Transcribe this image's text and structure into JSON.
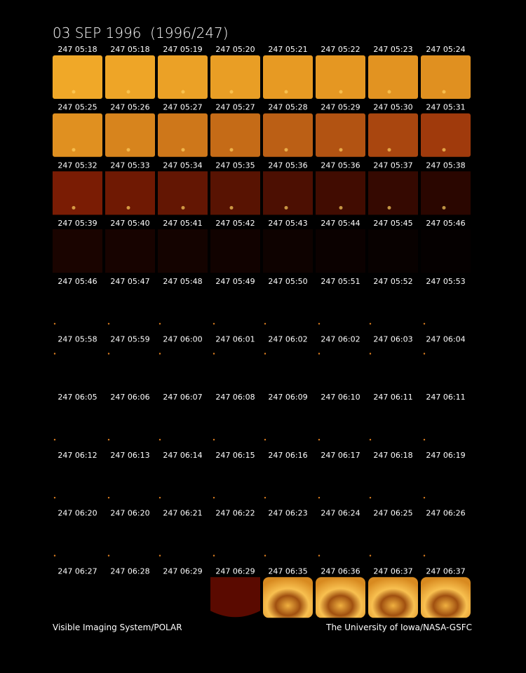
{
  "header": {
    "title": "03 SEP 1996  (1996/247)"
  },
  "frames": [
    [
      "247 05:18",
      "247 05:18",
      "247 05:19",
      "247 05:20",
      "247 05:21",
      "247 05:22",
      "247 05:23",
      "247 05:24"
    ],
    [
      "247 05:25",
      "247 05:26",
      "247 05:27",
      "247 05:27",
      "247 05:28",
      "247 05:29",
      "247 05:30",
      "247 05:31"
    ],
    [
      "247 05:32",
      "247 05:33",
      "247 05:34",
      "247 05:35",
      "247 05:36",
      "247 05:36",
      "247 05:37",
      "247 05:38"
    ],
    [
      "247 05:39",
      "247 05:40",
      "247 05:41",
      "247 05:42",
      "247 05:43",
      "247 05:44",
      "247 05:45",
      "247 05:46"
    ],
    [
      "247 05:46",
      "247 05:47",
      "247 05:48",
      "247 05:49",
      "247 05:50",
      "247 05:51",
      "247 05:52",
      "247 05:53"
    ],
    [
      "247 05:58",
      "247 05:59",
      "247 06:00",
      "247 06:01",
      "247 06:02",
      "247 06:02",
      "247 06:03",
      "247 06:04"
    ],
    [
      "247 06:05",
      "247 06:06",
      "247 06:07",
      "247 06:08",
      "247 06:09",
      "247 06:10",
      "247 06:11",
      "247 06:11"
    ],
    [
      "247 06:12",
      "247 06:13",
      "247 06:14",
      "247 06:15",
      "247 06:16",
      "247 06:17",
      "247 06:18",
      "247 06:19"
    ],
    [
      "247 06:20",
      "247 06:20",
      "247 06:21",
      "247 06:22",
      "247 06:23",
      "247 06:24",
      "247 06:25",
      "247 06:26"
    ],
    [
      "247 06:27",
      "247 06:28",
      "247 06:29",
      "247 06:29",
      "247 06:35",
      "247 06:36",
      "247 06:37",
      "247 06:37"
    ]
  ],
  "footer": {
    "left": "Visible Imaging System/POLAR",
    "right": "The University of Iowa/NASA-GSFC"
  }
}
